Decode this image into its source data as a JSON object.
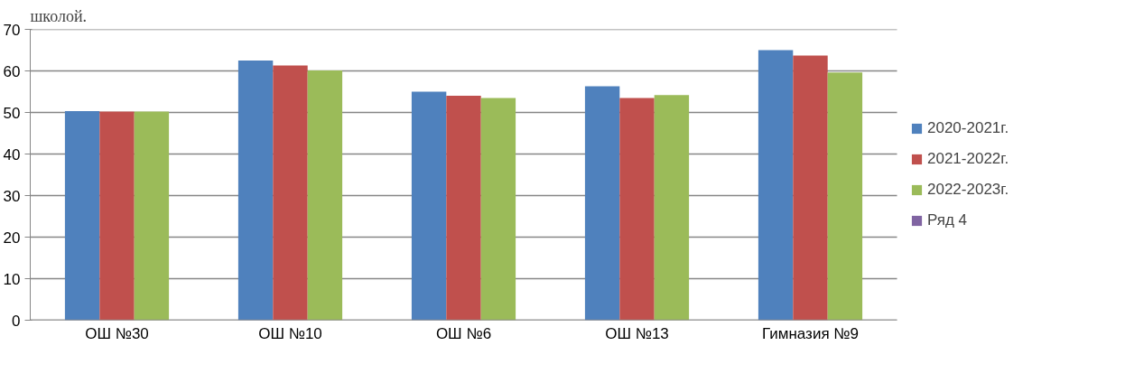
{
  "chart_data": {
    "type": "bar",
    "annotations": [
      "школой."
    ],
    "categories": [
      "ОШ №30",
      "ОШ №10",
      "ОШ №6",
      "ОШ №13",
      "Гимназия №9"
    ],
    "series": [
      {
        "name": "2020-2021г.",
        "color": "#4f81bd",
        "values": [
          50.3,
          62.5,
          55,
          56.3,
          65
        ]
      },
      {
        "name": "2021-2022г.",
        "color": "#c0504d",
        "values": [
          50.2,
          61.3,
          54,
          53.5,
          63.7
        ]
      },
      {
        "name": "2022-2023г.",
        "color": "#9bbb59",
        "values": [
          50.2,
          60.1,
          53.5,
          54.2,
          59.6
        ]
      },
      {
        "name": "Ряд 4",
        "color": "#8064a2",
        "values": [
          null,
          null,
          null,
          null,
          null
        ]
      }
    ],
    "ylim": [
      0,
      70
    ],
    "yticks": [
      0,
      10,
      20,
      30,
      40,
      50,
      60,
      70
    ],
    "grid": "y",
    "legend": "right"
  }
}
